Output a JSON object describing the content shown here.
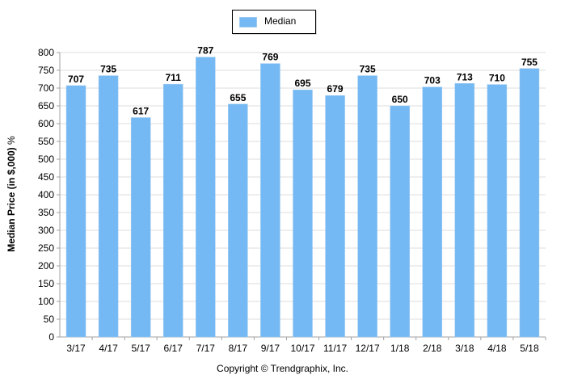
{
  "chart_data": {
    "type": "bar",
    "categories": [
      "3/17",
      "4/17",
      "5/17",
      "6/17",
      "7/17",
      "8/17",
      "9/17",
      "10/17",
      "11/17",
      "12/17",
      "1/18",
      "2/18",
      "3/18",
      "4/18",
      "5/18"
    ],
    "series": [
      {
        "name": "Median",
        "values": [
          707,
          735,
          617,
          711,
          787,
          655,
          769,
          695,
          679,
          735,
          650,
          703,
          713,
          710,
          755
        ]
      }
    ],
    "ylabel": "Median Price (in $,000)",
    "ylabel_suffix": "%",
    "xlabel": "",
    "ylim": [
      0,
      800
    ],
    "yticks": [
      0,
      50,
      100,
      150,
      200,
      250,
      300,
      350,
      400,
      450,
      500,
      550,
      600,
      650,
      700,
      750,
      800
    ],
    "grid": true,
    "legend_position": "top-center",
    "colors": {
      "bar": "#74b9f3",
      "bar_edge": "#9ec9ef",
      "grid": "#dcdcdc",
      "axis": "#a0a0a0"
    }
  },
  "footer": {
    "copyright": "Copyright © Trendgraphix, Inc."
  }
}
